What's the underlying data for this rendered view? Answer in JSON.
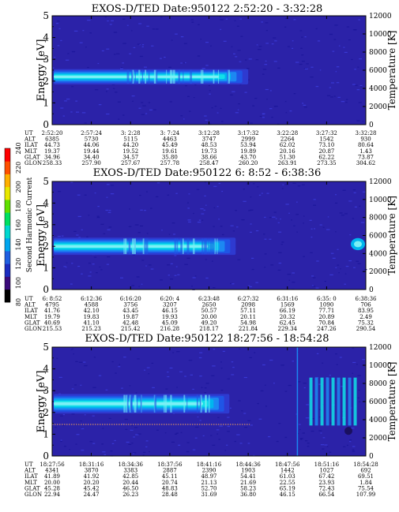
{
  "colorbar": {
    "label": "Second Harmonic Current",
    "ticks": [
      "80",
      "100",
      "120",
      "140",
      "160",
      "180",
      "200",
      "220",
      "240"
    ],
    "colors": [
      "#000000",
      "#3a0a7a",
      "#1b2cbf",
      "#1f5fe0",
      "#00a6ef",
      "#00d8d0",
      "#00e060",
      "#60e000",
      "#e8e800",
      "#ffb000",
      "#ff5000",
      "#ff0000"
    ]
  },
  "chart_data": [
    {
      "type": "heatmap",
      "title": "EXOS-D/TED   Date:950122   2:52:20 - 3:32:28",
      "ylabel": "Energy [eV]",
      "ylabel_right": "Temperature [K]",
      "ylim": [
        0,
        5
      ],
      "yticks": [
        "0",
        "1",
        "2",
        "3",
        "4",
        "5"
      ],
      "ylim_right": [
        0,
        12000
      ],
      "yticks_right": [
        "0",
        "2000",
        "4000",
        "6000",
        "8000",
        "10000",
        "12000"
      ],
      "band": {
        "center_eV": 2.2,
        "width_eV": 0.7,
        "end_fraction": 0.62
      },
      "trace": null,
      "row_labels": [
        "UT",
        "ALT",
        "ILAT",
        "MLT",
        "GLAT",
        "GLON"
      ],
      "columns": [
        [
          "2:52:20",
          "6385",
          "44.73",
          "19.37",
          "34.96",
          "258.33"
        ],
        [
          "2:57:24",
          "5730",
          "44.06",
          "19.44",
          "34.40",
          "257.90"
        ],
        [
          "3: 2:28",
          "5115",
          "44.20",
          "19.52",
          "34.57",
          "257.67"
        ],
        [
          "3: 7:24",
          "4463",
          "45.49",
          "19.61",
          "35.80",
          "257.78"
        ],
        [
          "3:12:28",
          "3747",
          "48.53",
          "19.73",
          "38.66",
          "258.47"
        ],
        [
          "3:17:32",
          "2999",
          "53.94",
          "19.89",
          "43.70",
          "260.20"
        ],
        [
          "3:22:28",
          "2264",
          "62.02",
          "20.16",
          "51.30",
          "263.91"
        ],
        [
          "3:27:32",
          "1542",
          "73.10",
          "20.87",
          "62.22",
          "273.35"
        ],
        [
          "3:32:28",
          "930",
          "80.64",
          "1.43",
          "73.87",
          "304.62"
        ]
      ]
    },
    {
      "type": "heatmap",
      "title": "EXOS-D/TED   Date:950122   6: 8:52 - 6:38:36",
      "ylabel": "Energy [eV]",
      "ylabel_right": "Temperature [K]",
      "ylim": [
        0,
        5
      ],
      "yticks": [
        "0",
        "1",
        "2",
        "3",
        "4",
        "5"
      ],
      "ylim_right": [
        0,
        12000
      ],
      "yticks_right": [
        "0",
        "2000",
        "4000",
        "6000",
        "8000",
        "10000",
        "12000"
      ],
      "band": {
        "center_eV": 2.0,
        "width_eV": 0.8,
        "end_fraction": 0.58
      },
      "trace": null,
      "row_labels": [
        "UT",
        "ALT",
        "ILAT",
        "MLT",
        "GLAT",
        "GLON"
      ],
      "columns": [
        [
          "6: 8:52",
          "4795",
          "41.76",
          "19.79",
          "40.69",
          "215.53"
        ],
        [
          "6:12:36",
          "4588",
          "42.10",
          "19.83",
          "41.10",
          "215.23"
        ],
        [
          "6:16:20",
          "3756",
          "43.45",
          "19.87",
          "42.48",
          "215.42"
        ],
        [
          "6:20: 4",
          "3207",
          "46.15",
          "19.93",
          "45.09",
          "216.28"
        ],
        [
          "6:23:48",
          "2650",
          "50.57",
          "20.00",
          "49.20",
          "218.17"
        ],
        [
          "6:27:32",
          "2098",
          "57.11",
          "20.11",
          "54.98",
          "221.84"
        ],
        [
          "6:31:16",
          "1569",
          "66.19",
          "20.32",
          "62.45",
          "229.34"
        ],
        [
          "6:35: 0",
          "1090",
          "77.71",
          "20.89",
          "70.84",
          "247.26"
        ],
        [
          "6:38:36",
          "706",
          "83.95",
          "2.49",
          "75.32",
          "290.54"
        ]
      ]
    },
    {
      "type": "heatmap",
      "title": "EXOS-D/TED   Date:950122   18:27:56 - 18:54:28",
      "ylabel": "Energy [eV]",
      "ylabel_right": "Temperature [K]",
      "ylim": [
        0,
        5
      ],
      "yticks": [
        "0",
        "1",
        "2",
        "3",
        "4",
        "5"
      ],
      "ylim_right": [
        0,
        12000
      ],
      "yticks_right": [
        "0",
        "2000",
        "4000",
        "6000",
        "8000",
        "10000",
        "12000"
      ],
      "band": {
        "center_eV": 2.4,
        "width_eV": 0.9,
        "end_fraction": 0.56
      },
      "trace": {
        "eV": 1.45
      },
      "row_labels": [
        "UT",
        "ALT",
        "ILAT",
        "MLT",
        "GLAT",
        "GLON"
      ],
      "columns": [
        [
          "18:27:56",
          "4341",
          "41.89",
          "20.00",
          "45.28",
          "22.94"
        ],
        [
          "18:31:16",
          "3870",
          "41.92",
          "20.20",
          "45.42",
          "24.47"
        ],
        [
          "18:34:36",
          "3383",
          "42.85",
          "20.44",
          "46.50",
          "26.23"
        ],
        [
          "18:37:56",
          "2887",
          "45.11",
          "20.74",
          "48.83",
          "28.48"
        ],
        [
          "18:41:16",
          "2390",
          "48.97",
          "21.13",
          "52.70",
          "31.69"
        ],
        [
          "18:44:36",
          "1903",
          "54.41",
          "21.69",
          "58.23",
          "36.80"
        ],
        [
          "18:47:56",
          "1442",
          "61.03",
          "22.55",
          "65.19",
          "46.15"
        ],
        [
          "18:51:16",
          "1027",
          "67.42",
          "23.93",
          "72.43",
          "66.54"
        ],
        [
          "18:54:28",
          "692",
          "69.51",
          "1.84",
          "75.54",
          "107.99"
        ]
      ]
    }
  ]
}
